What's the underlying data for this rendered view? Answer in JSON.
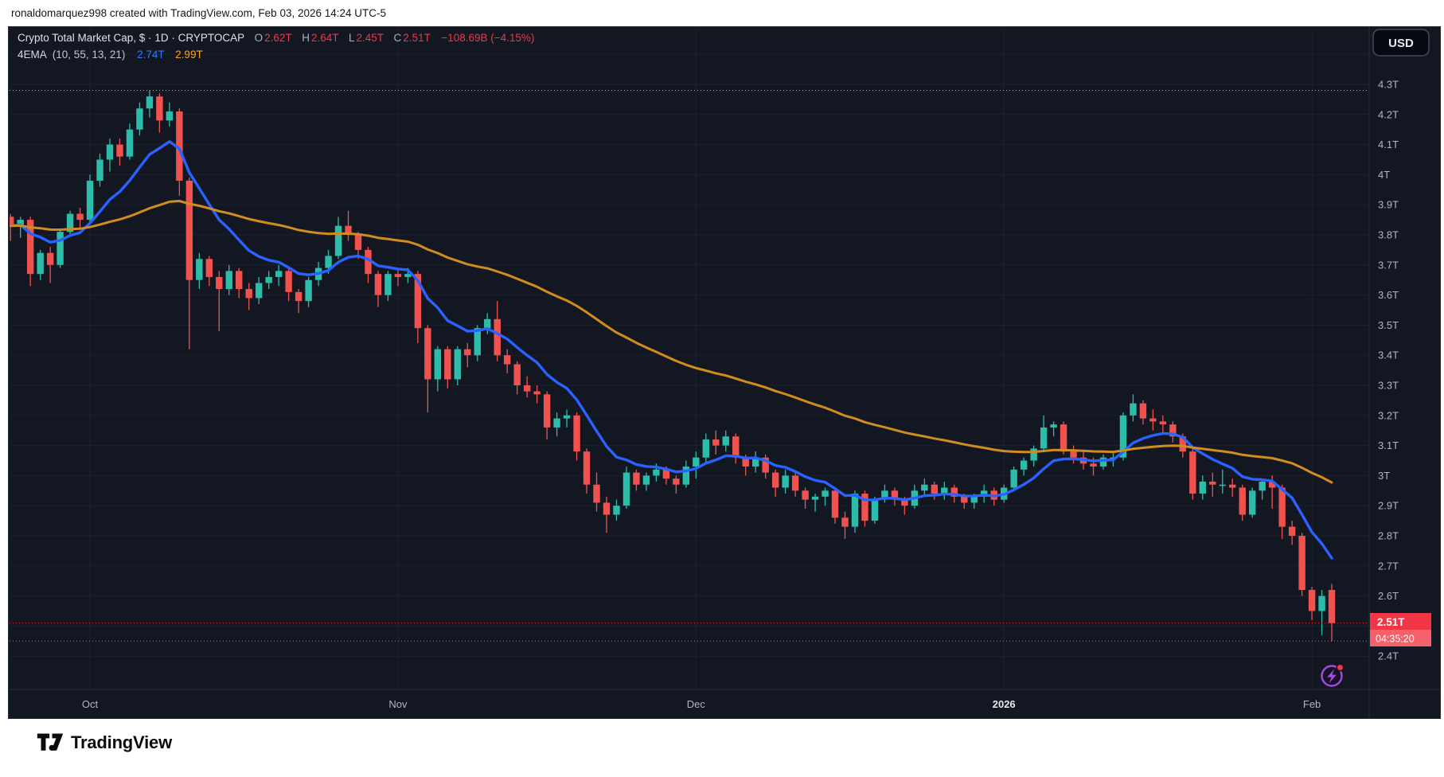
{
  "header": {
    "attribution": "ronaldomarquez998 created with TradingView.com, Feb 03, 2026 14:24 UTC-5"
  },
  "legend": {
    "symbol_title": "Crypto Total Market Cap, $ · 1D · CRYPTOCAP",
    "o_label": "O",
    "o_value": "2.62T",
    "h_label": "H",
    "h_value": "2.64T",
    "l_label": "L",
    "l_value": "2.45T",
    "c_label": "C",
    "c_value": "2.51T",
    "change": "−108.69B (−4.15%)",
    "indicator_name": "4EMA",
    "indicator_params": "(10, 55, 13, 21)",
    "indicator_value_fast": "2.74T",
    "indicator_value_slow": "2.99T"
  },
  "toolbar": {
    "currency_button": "USD"
  },
  "price_tag": {
    "price": "2.51T",
    "countdown": "04:35:20"
  },
  "footer": {
    "logo_text": "TradingView"
  },
  "price_axis": {
    "labels": [
      {
        "text": "4.3T",
        "value": 4.3
      },
      {
        "text": "4.2T",
        "value": 4.2
      },
      {
        "text": "4.1T",
        "value": 4.1
      },
      {
        "text": "4T",
        "value": 4.0
      },
      {
        "text": "3.9T",
        "value": 3.9
      },
      {
        "text": "3.8T",
        "value": 3.8
      },
      {
        "text": "3.7T",
        "value": 3.7
      },
      {
        "text": "3.6T",
        "value": 3.6
      },
      {
        "text": "3.5T",
        "value": 3.5
      },
      {
        "text": "3.4T",
        "value": 3.4
      },
      {
        "text": "3.3T",
        "value": 3.3
      },
      {
        "text": "3.2T",
        "value": 3.2
      },
      {
        "text": "3.1T",
        "value": 3.1
      },
      {
        "text": "3T",
        "value": 3.0
      },
      {
        "text": "2.9T",
        "value": 2.9
      },
      {
        "text": "2.8T",
        "value": 2.8
      },
      {
        "text": "2.7T",
        "value": 2.7
      },
      {
        "text": "2.6T",
        "value": 2.6
      },
      {
        "text": "2.5T",
        "value": 2.5
      },
      {
        "text": "2.4T",
        "value": 2.4
      }
    ]
  },
  "time_axis": {
    "labels": [
      {
        "label": "Oct",
        "index": 8,
        "bold": false
      },
      {
        "label": "Nov",
        "index": 39,
        "bold": false
      },
      {
        "label": "Dec",
        "index": 69,
        "bold": false
      },
      {
        "label": "2026",
        "index": 100,
        "bold": true
      },
      {
        "label": "Feb",
        "index": 131,
        "bold": false
      }
    ]
  },
  "chart_data": {
    "type": "candlestick",
    "title": "Crypto Total Market Cap",
    "symbol": "CRYPTOCAP",
    "interval": "1D",
    "currency": "USD",
    "start_date": "2025-09-23",
    "end_date": "2026-02-03",
    "ylim": [
      2.29,
      4.5
    ],
    "y_unit": "T (trillion USD)",
    "grid": true,
    "current_bar": {
      "open": 2.62,
      "high": 2.64,
      "low": 2.45,
      "close": 2.51,
      "change_abs": "−108.69B",
      "change_pct": "−4.15%"
    },
    "levels": {
      "ath_line": 4.28,
      "last_price": 2.51,
      "low_line": 2.45
    },
    "series": [
      {
        "name": "EMA 10",
        "type": "ema",
        "period": 10,
        "last_value": 2.74,
        "color": "#2962ff"
      },
      {
        "name": "EMA 55",
        "type": "ema",
        "period": 55,
        "last_value": 2.99,
        "color": "#cf8d1f"
      }
    ],
    "colors": {
      "up": "#2cbcaa",
      "down": "#f0534f",
      "accent_red": "#f23645",
      "tag_red": "#f23645",
      "tag_red_light": "#f4606b"
    },
    "candles": [
      [
        3.86,
        3.87,
        3.78,
        3.83
      ],
      [
        3.83,
        3.86,
        3.79,
        3.85
      ],
      [
        3.85,
        3.86,
        3.63,
        3.67
      ],
      [
        3.67,
        3.75,
        3.65,
        3.74
      ],
      [
        3.74,
        3.76,
        3.64,
        3.7
      ],
      [
        3.7,
        3.82,
        3.69,
        3.81
      ],
      [
        3.81,
        3.88,
        3.8,
        3.87
      ],
      [
        3.87,
        3.89,
        3.82,
        3.85
      ],
      [
        3.85,
        4.0,
        3.84,
        3.98
      ],
      [
        3.98,
        4.07,
        3.96,
        4.05
      ],
      [
        4.05,
        4.12,
        4.01,
        4.1
      ],
      [
        4.1,
        4.12,
        4.03,
        4.06
      ],
      [
        4.06,
        4.17,
        4.05,
        4.15
      ],
      [
        4.15,
        4.24,
        4.13,
        4.22
      ],
      [
        4.22,
        4.28,
        4.19,
        4.26
      ],
      [
        4.26,
        4.27,
        4.14,
        4.18
      ],
      [
        4.18,
        4.24,
        4.16,
        4.21
      ],
      [
        4.21,
        4.22,
        3.93,
        3.98
      ],
      [
        3.98,
        3.99,
        3.42,
        3.65
      ],
      [
        3.65,
        3.74,
        3.62,
        3.72
      ],
      [
        3.72,
        3.73,
        3.63,
        3.66
      ],
      [
        3.66,
        3.68,
        3.48,
        3.62
      ],
      [
        3.62,
        3.7,
        3.6,
        3.68
      ],
      [
        3.68,
        3.69,
        3.59,
        3.62
      ],
      [
        3.62,
        3.64,
        3.55,
        3.59
      ],
      [
        3.59,
        3.66,
        3.57,
        3.64
      ],
      [
        3.64,
        3.68,
        3.62,
        3.66
      ],
      [
        3.66,
        3.7,
        3.63,
        3.68
      ],
      [
        3.68,
        3.69,
        3.58,
        3.61
      ],
      [
        3.61,
        3.62,
        3.54,
        3.58
      ],
      [
        3.58,
        3.66,
        3.56,
        3.65
      ],
      [
        3.65,
        3.71,
        3.63,
        3.69
      ],
      [
        3.69,
        3.75,
        3.67,
        3.73
      ],
      [
        3.73,
        3.86,
        3.72,
        3.83
      ],
      [
        3.83,
        3.88,
        3.78,
        3.8
      ],
      [
        3.8,
        3.81,
        3.72,
        3.75
      ],
      [
        3.75,
        3.76,
        3.64,
        3.67
      ],
      [
        3.67,
        3.68,
        3.56,
        3.6
      ],
      [
        3.6,
        3.68,
        3.58,
        3.67
      ],
      [
        3.67,
        3.69,
        3.63,
        3.66
      ],
      [
        3.66,
        3.69,
        3.64,
        3.67
      ],
      [
        3.67,
        3.68,
        3.44,
        3.49
      ],
      [
        3.49,
        3.5,
        3.21,
        3.32
      ],
      [
        3.32,
        3.43,
        3.28,
        3.42
      ],
      [
        3.42,
        3.43,
        3.29,
        3.32
      ],
      [
        3.32,
        3.43,
        3.3,
        3.42
      ],
      [
        3.42,
        3.44,
        3.36,
        3.4
      ],
      [
        3.4,
        3.5,
        3.38,
        3.49
      ],
      [
        3.49,
        3.54,
        3.47,
        3.52
      ],
      [
        3.52,
        3.58,
        3.38,
        3.4
      ],
      [
        3.4,
        3.42,
        3.34,
        3.37
      ],
      [
        3.37,
        3.38,
        3.27,
        3.3
      ],
      [
        3.3,
        3.33,
        3.26,
        3.28
      ],
      [
        3.28,
        3.3,
        3.24,
        3.27
      ],
      [
        3.27,
        3.28,
        3.12,
        3.16
      ],
      [
        3.16,
        3.21,
        3.13,
        3.19
      ],
      [
        3.19,
        3.22,
        3.16,
        3.2
      ],
      [
        3.2,
        3.21,
        3.05,
        3.08
      ],
      [
        3.08,
        3.09,
        2.94,
        2.97
      ],
      [
        2.97,
        3.01,
        2.88,
        2.91
      ],
      [
        2.91,
        2.93,
        2.81,
        2.87
      ],
      [
        2.87,
        2.92,
        2.85,
        2.9
      ],
      [
        2.9,
        3.03,
        2.89,
        3.01
      ],
      [
        3.01,
        3.02,
        2.95,
        2.97
      ],
      [
        2.97,
        3.01,
        2.95,
        3.0
      ],
      [
        3.0,
        3.04,
        2.98,
        3.02
      ],
      [
        3.02,
        3.03,
        2.97,
        2.99
      ],
      [
        2.99,
        3.0,
        2.94,
        2.97
      ],
      [
        2.97,
        3.05,
        2.96,
        3.03
      ],
      [
        3.03,
        3.08,
        2.99,
        3.06
      ],
      [
        3.06,
        3.14,
        3.04,
        3.12
      ],
      [
        3.12,
        3.15,
        3.07,
        3.1
      ],
      [
        3.1,
        3.15,
        3.08,
        3.13
      ],
      [
        3.13,
        3.14,
        3.04,
        3.06
      ],
      [
        3.06,
        3.07,
        3.0,
        3.03
      ],
      [
        3.03,
        3.08,
        3.01,
        3.06
      ],
      [
        3.06,
        3.07,
        2.99,
        3.01
      ],
      [
        3.01,
        3.02,
        2.93,
        2.96
      ],
      [
        2.96,
        3.02,
        2.94,
        3.0
      ],
      [
        3.0,
        3.01,
        2.93,
        2.95
      ],
      [
        2.95,
        2.96,
        2.89,
        2.92
      ],
      [
        2.92,
        2.94,
        2.88,
        2.93
      ],
      [
        2.93,
        2.96,
        2.9,
        2.95
      ],
      [
        2.95,
        2.96,
        2.84,
        2.86
      ],
      [
        2.86,
        2.88,
        2.79,
        2.83
      ],
      [
        2.83,
        2.95,
        2.81,
        2.94
      ],
      [
        2.94,
        2.95,
        2.83,
        2.85
      ],
      [
        2.85,
        2.93,
        2.84,
        2.92
      ],
      [
        2.92,
        2.97,
        2.91,
        2.95
      ],
      [
        2.95,
        2.96,
        2.9,
        2.92
      ],
      [
        2.92,
        2.93,
        2.87,
        2.9
      ],
      [
        2.9,
        2.97,
        2.89,
        2.95
      ],
      [
        2.95,
        2.99,
        2.93,
        2.97
      ],
      [
        2.97,
        2.98,
        2.92,
        2.94
      ],
      [
        2.94,
        2.98,
        2.92,
        2.96
      ],
      [
        2.96,
        2.97,
        2.91,
        2.93
      ],
      [
        2.93,
        2.94,
        2.89,
        2.91
      ],
      [
        2.91,
        2.94,
        2.89,
        2.93
      ],
      [
        2.93,
        2.97,
        2.91,
        2.95
      ],
      [
        2.95,
        2.96,
        2.9,
        2.92
      ],
      [
        2.92,
        2.97,
        2.91,
        2.96
      ],
      [
        2.96,
        3.03,
        2.95,
        3.02
      ],
      [
        3.02,
        3.06,
        3.0,
        3.05
      ],
      [
        3.05,
        3.1,
        3.03,
        3.09
      ],
      [
        3.09,
        3.2,
        3.08,
        3.16
      ],
      [
        3.16,
        3.18,
        3.13,
        3.17
      ],
      [
        3.17,
        3.18,
        3.07,
        3.08
      ],
      [
        3.08,
        3.1,
        3.04,
        3.06
      ],
      [
        3.06,
        3.08,
        3.02,
        3.04
      ],
      [
        3.04,
        3.06,
        3.0,
        3.03
      ],
      [
        3.03,
        3.07,
        3.02,
        3.06
      ],
      [
        3.06,
        3.08,
        3.03,
        3.06
      ],
      [
        3.06,
        3.21,
        3.05,
        3.2
      ],
      [
        3.2,
        3.27,
        3.18,
        3.24
      ],
      [
        3.24,
        3.25,
        3.17,
        3.19
      ],
      [
        3.19,
        3.22,
        3.15,
        3.18
      ],
      [
        3.18,
        3.2,
        3.14,
        3.17
      ],
      [
        3.17,
        3.18,
        3.11,
        3.13
      ],
      [
        3.13,
        3.14,
        3.06,
        3.08
      ],
      [
        3.08,
        3.09,
        2.92,
        2.94
      ],
      [
        2.94,
        3.0,
        2.92,
        2.98
      ],
      [
        2.98,
        3.01,
        2.93,
        2.97
      ],
      [
        2.97,
        3.02,
        2.94,
        2.97
      ],
      [
        2.97,
        2.99,
        2.93,
        2.96
      ],
      [
        2.96,
        2.97,
        2.85,
        2.87
      ],
      [
        2.87,
        2.96,
        2.86,
        2.95
      ],
      [
        2.95,
        2.99,
        2.92,
        2.98
      ],
      [
        2.98,
        3.0,
        2.89,
        2.96
      ],
      [
        2.96,
        2.97,
        2.79,
        2.83
      ],
      [
        2.83,
        2.85,
        2.77,
        2.8
      ],
      [
        2.8,
        2.81,
        2.6,
        2.62
      ],
      [
        2.62,
        2.63,
        2.52,
        2.55
      ],
      [
        2.55,
        2.62,
        2.47,
        2.6
      ],
      [
        2.62,
        2.64,
        2.45,
        2.51
      ]
    ]
  }
}
